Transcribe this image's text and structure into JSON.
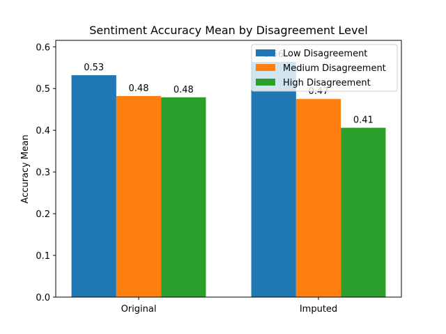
{
  "chart_data": {
    "type": "bar",
    "title": "Sentiment Accuracy Mean by Disagreement Level",
    "xlabel": "",
    "ylabel": "Accuracy Mean",
    "categories": [
      "Original",
      "Imputed"
    ],
    "series": [
      {
        "name": "Low Disagreement",
        "color": "#1f77b4",
        "values": [
          0.532,
          0.564
        ],
        "labels": [
          "0.53",
          "0.56"
        ]
      },
      {
        "name": "Medium Disagreement",
        "color": "#ff7f0e",
        "values": [
          0.482,
          0.475
        ],
        "labels": [
          "0.48",
          "0.47"
        ]
      },
      {
        "name": "High Disagreement",
        "color": "#2ca02c",
        "values": [
          0.479,
          0.406
        ],
        "labels": [
          "0.48",
          "0.41"
        ]
      }
    ],
    "ylim": [
      0,
      0.6
    ],
    "yticks": [
      "0.0",
      "0.1",
      "0.2",
      "0.3",
      "0.4",
      "0.5",
      "0.6"
    ],
    "grid": false,
    "legend_position": "top-right"
  }
}
